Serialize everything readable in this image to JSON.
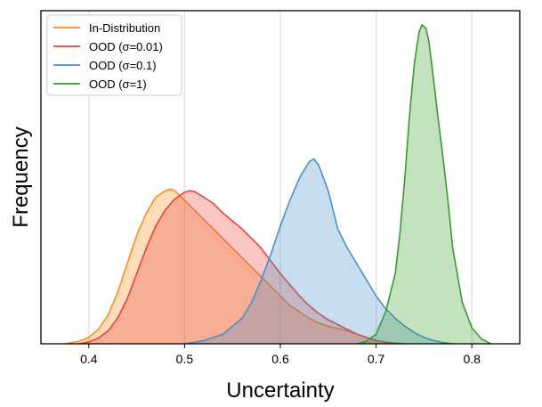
{
  "chart_data": {
    "type": "area",
    "title": "",
    "xlabel": "Uncertainty",
    "ylabel": "Frequency",
    "xlim": [
      0.35,
      0.85
    ],
    "ylim": [
      0,
      1.0
    ],
    "xticks": [
      0.4,
      0.5,
      0.6,
      0.7,
      0.8
    ],
    "xtick_labels": [
      "0.4",
      "0.5",
      "0.6",
      "0.7",
      "0.8"
    ],
    "grid": "vertical",
    "legend_position": "top-left",
    "series": [
      {
        "name": "In-Distribution",
        "color": "#ff8c1a",
        "x": [
          0.375,
          0.39,
          0.4,
          0.41,
          0.42,
          0.43,
          0.44,
          0.45,
          0.46,
          0.47,
          0.48,
          0.485,
          0.49,
          0.5,
          0.51,
          0.52,
          0.53,
          0.54,
          0.55,
          0.56,
          0.57,
          0.58,
          0.59,
          0.6,
          0.61,
          0.62,
          0.63,
          0.64,
          0.65,
          0.66,
          0.67,
          0.68,
          0.69,
          0.7,
          0.71,
          0.72
        ],
        "y": [
          0.0,
          0.008,
          0.02,
          0.045,
          0.09,
          0.16,
          0.25,
          0.34,
          0.41,
          0.46,
          0.48,
          0.485,
          0.48,
          0.45,
          0.42,
          0.39,
          0.36,
          0.33,
          0.3,
          0.27,
          0.24,
          0.21,
          0.18,
          0.15,
          0.12,
          0.1,
          0.08,
          0.065,
          0.055,
          0.048,
          0.04,
          0.03,
          0.02,
          0.01,
          0.004,
          0.0
        ]
      },
      {
        "name": "OOD (σ=0.01)",
        "color": "#e8443a",
        "x": [
          0.39,
          0.4,
          0.41,
          0.42,
          0.43,
          0.44,
          0.45,
          0.46,
          0.47,
          0.48,
          0.49,
          0.5,
          0.505,
          0.51,
          0.52,
          0.53,
          0.54,
          0.55,
          0.56,
          0.57,
          0.58,
          0.59,
          0.6,
          0.61,
          0.62,
          0.63,
          0.64,
          0.65,
          0.66,
          0.67,
          0.68,
          0.69,
          0.7,
          0.71,
          0.72,
          0.73
        ],
        "y": [
          0.0,
          0.006,
          0.018,
          0.04,
          0.08,
          0.14,
          0.22,
          0.3,
          0.37,
          0.42,
          0.455,
          0.475,
          0.48,
          0.478,
          0.46,
          0.44,
          0.41,
          0.385,
          0.36,
          0.33,
          0.3,
          0.26,
          0.22,
          0.185,
          0.15,
          0.12,
          0.095,
          0.075,
          0.06,
          0.045,
          0.03,
          0.02,
          0.01,
          0.005,
          0.002,
          0.0
        ]
      },
      {
        "name": "OOD (σ=0.1)",
        "color": "#4a90c8",
        "x": [
          0.5,
          0.52,
          0.54,
          0.56,
          0.57,
          0.58,
          0.59,
          0.6,
          0.61,
          0.62,
          0.63,
          0.635,
          0.64,
          0.65,
          0.66,
          0.67,
          0.68,
          0.69,
          0.7,
          0.71,
          0.72,
          0.73,
          0.74,
          0.75,
          0.76,
          0.77,
          0.78
        ],
        "y": [
          0.0,
          0.01,
          0.03,
          0.08,
          0.13,
          0.2,
          0.28,
          0.37,
          0.45,
          0.52,
          0.57,
          0.58,
          0.56,
          0.48,
          0.36,
          0.3,
          0.25,
          0.2,
          0.15,
          0.11,
          0.08,
          0.055,
          0.035,
          0.02,
          0.01,
          0.004,
          0.0
        ]
      },
      {
        "name": "OOD (σ=1)",
        "color": "#3a9a2e",
        "x": [
          0.68,
          0.69,
          0.7,
          0.71,
          0.72,
          0.725,
          0.73,
          0.735,
          0.74,
          0.745,
          0.748,
          0.752,
          0.755,
          0.76,
          0.765,
          0.77,
          0.775,
          0.78,
          0.79,
          0.8,
          0.81,
          0.82
        ],
        "y": [
          0.0,
          0.008,
          0.03,
          0.1,
          0.22,
          0.35,
          0.52,
          0.72,
          0.88,
          0.98,
          1.0,
          0.99,
          0.95,
          0.83,
          0.7,
          0.58,
          0.45,
          0.3,
          0.13,
          0.05,
          0.015,
          0.0
        ]
      }
    ]
  }
}
